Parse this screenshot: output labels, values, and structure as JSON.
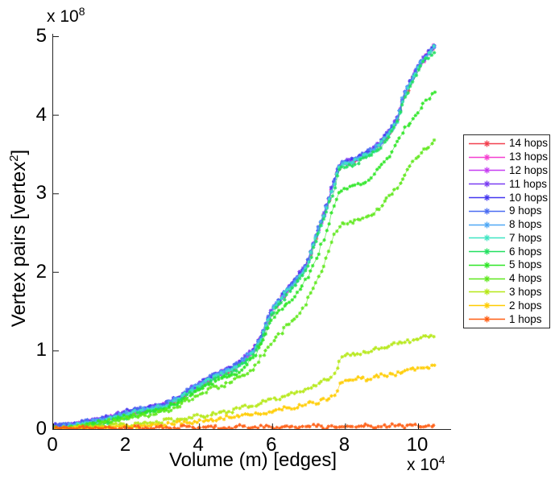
{
  "figure": {
    "background": "#ffffff",
    "xlabel": "Volume (m) [edges]",
    "ylabel": {
      "base": "Vertex pairs [vertex",
      "sup": "2",
      "close": "]"
    },
    "y_exp": {
      "base": "x 10",
      "sup": "8"
    },
    "x_exp": {
      "base": "x 10",
      "sup": "4"
    }
  },
  "chart_data": {
    "type": "line",
    "title": "",
    "xlabel": "Volume (m) [edges]",
    "ylabel": "Vertex pairs [vertex^2]",
    "x_unit": "1e4 edges",
    "y_unit": "1e8 vertex pairs",
    "xlim": [
      0,
      10.9
    ],
    "ylim": [
      0,
      5.03
    ],
    "x_ticks": [
      0,
      2,
      4,
      6,
      8,
      10
    ],
    "y_ticks": [
      0,
      1,
      2,
      3,
      4,
      5
    ],
    "grid": false,
    "marker": "asterisk",
    "legend_position": "right-outside",
    "legend_order": "14 hops (top) to 1 hops (bottom)",
    "saturation_curve": [
      [
        0,
        0.01
      ],
      [
        0.5,
        0.03
      ],
      [
        1,
        0.07
      ],
      [
        1.5,
        0.12
      ],
      [
        2,
        0.19
      ],
      [
        2.5,
        0.24
      ],
      [
        3,
        0.28
      ],
      [
        3.2,
        0.32
      ],
      [
        3.5,
        0.4
      ],
      [
        4,
        0.55
      ],
      [
        4.5,
        0.68
      ],
      [
        5,
        0.78
      ],
      [
        5.2,
        0.85
      ],
      [
        5.5,
        1.0
      ],
      [
        5.75,
        1.2
      ],
      [
        6,
        1.5
      ],
      [
        6.2,
        1.62
      ],
      [
        6.4,
        1.75
      ],
      [
        6.6,
        1.85
      ],
      [
        6.8,
        1.98
      ],
      [
        6.95,
        2.08
      ],
      [
        7.1,
        2.3
      ],
      [
        7.25,
        2.5
      ],
      [
        7.4,
        2.68
      ],
      [
        7.55,
        2.9
      ],
      [
        7.7,
        3.12
      ],
      [
        7.8,
        3.3
      ],
      [
        7.95,
        3.37
      ],
      [
        8.2,
        3.39
      ],
      [
        8.45,
        3.46
      ],
      [
        8.7,
        3.52
      ],
      [
        9.0,
        3.64
      ],
      [
        9.15,
        3.72
      ],
      [
        9.3,
        3.82
      ],
      [
        9.45,
        3.95
      ],
      [
        9.6,
        4.22
      ],
      [
        9.75,
        4.35
      ],
      [
        9.9,
        4.5
      ],
      [
        10.05,
        4.62
      ],
      [
        10.2,
        4.72
      ],
      [
        10.35,
        4.8
      ],
      [
        10.5,
        4.88
      ]
    ],
    "series": [
      {
        "label": "1 hops",
        "color": "#ff5c11",
        "points": [
          [
            0,
            0.008
          ],
          [
            2,
            0.014
          ],
          [
            4,
            0.02
          ],
          [
            6,
            0.027
          ],
          [
            8,
            0.035
          ],
          [
            9,
            0.04
          ],
          [
            10.5,
            0.046
          ]
        ]
      },
      {
        "label": "2 hops",
        "color": "#ffcc00",
        "points": [
          [
            0,
            0.005
          ],
          [
            1,
            0.015
          ],
          [
            2,
            0.03
          ],
          [
            3,
            0.06
          ],
          [
            4,
            0.1
          ],
          [
            5,
            0.16
          ],
          [
            5.5,
            0.19
          ],
          [
            6,
            0.23
          ],
          [
            6.4,
            0.27
          ],
          [
            6.8,
            0.3
          ],
          [
            7.1,
            0.33
          ],
          [
            7.4,
            0.37
          ],
          [
            7.6,
            0.4
          ],
          [
            7.7,
            0.43
          ],
          [
            7.85,
            0.58
          ],
          [
            8.0,
            0.62
          ],
          [
            8.3,
            0.63
          ],
          [
            8.7,
            0.65
          ],
          [
            9.0,
            0.68
          ],
          [
            9.3,
            0.7
          ],
          [
            9.6,
            0.73
          ],
          [
            9.9,
            0.76
          ],
          [
            10.2,
            0.78
          ],
          [
            10.5,
            0.8
          ]
        ]
      },
      {
        "label": "3 hops",
        "color": "#b5e817",
        "points": [
          [
            0,
            0.005
          ],
          [
            1,
            0.02
          ],
          [
            2,
            0.05
          ],
          [
            3,
            0.1
          ],
          [
            4,
            0.16
          ],
          [
            4.5,
            0.2
          ],
          [
            5,
            0.25
          ],
          [
            5.5,
            0.31
          ],
          [
            6,
            0.37
          ],
          [
            6.4,
            0.43
          ],
          [
            6.8,
            0.49
          ],
          [
            7.1,
            0.54
          ],
          [
            7.4,
            0.6
          ],
          [
            7.6,
            0.66
          ],
          [
            7.7,
            0.72
          ],
          [
            7.85,
            0.88
          ],
          [
            8.0,
            0.93
          ],
          [
            8.3,
            0.95
          ],
          [
            8.7,
            0.99
          ],
          [
            9.0,
            1.03
          ],
          [
            9.3,
            1.07
          ],
          [
            9.6,
            1.11
          ],
          [
            9.9,
            1.14
          ],
          [
            10.2,
            1.17
          ],
          [
            10.5,
            1.2
          ]
        ]
      },
      {
        "label": "4 hops",
        "color": "#5fe81c",
        "points": [
          [
            0,
            0.01
          ],
          [
            0.5,
            0.02
          ],
          [
            1,
            0.05
          ],
          [
            1.5,
            0.09
          ],
          [
            2,
            0.14
          ],
          [
            2.5,
            0.18
          ],
          [
            3,
            0.22
          ],
          [
            3.5,
            0.31
          ],
          [
            4,
            0.44
          ],
          [
            4.5,
            0.54
          ],
          [
            5,
            0.62
          ],
          [
            5.5,
            0.78
          ],
          [
            6,
            1.1
          ],
          [
            6.4,
            1.3
          ],
          [
            6.8,
            1.5
          ],
          [
            7.1,
            1.75
          ],
          [
            7.4,
            2.05
          ],
          [
            7.55,
            2.25
          ],
          [
            7.7,
            2.45
          ],
          [
            7.85,
            2.58
          ],
          [
            8.0,
            2.63
          ],
          [
            8.2,
            2.65
          ],
          [
            8.45,
            2.67
          ],
          [
            8.7,
            2.73
          ],
          [
            9.0,
            2.85
          ],
          [
            9.3,
            3.0
          ],
          [
            9.6,
            3.2
          ],
          [
            9.9,
            3.42
          ],
          [
            10.2,
            3.58
          ],
          [
            10.5,
            3.68
          ]
        ]
      },
      {
        "label": "5 hops",
        "color": "#2ee626",
        "points": [
          [
            0,
            0.01
          ],
          [
            0.5,
            0.025
          ],
          [
            1,
            0.06
          ],
          [
            1.5,
            0.1
          ],
          [
            2,
            0.16
          ],
          [
            2.5,
            0.21
          ],
          [
            3,
            0.25
          ],
          [
            3.5,
            0.36
          ],
          [
            4,
            0.5
          ],
          [
            4.5,
            0.62
          ],
          [
            5,
            0.7
          ],
          [
            5.5,
            0.9
          ],
          [
            6,
            1.4
          ],
          [
            6.4,
            1.58
          ],
          [
            6.8,
            1.78
          ],
          [
            7.1,
            2.05
          ],
          [
            7.4,
            2.4
          ],
          [
            7.55,
            2.6
          ],
          [
            7.7,
            2.85
          ],
          [
            7.85,
            3.0
          ],
          [
            8.0,
            3.06
          ],
          [
            8.2,
            3.09
          ],
          [
            8.45,
            3.13
          ],
          [
            8.7,
            3.2
          ],
          [
            9.0,
            3.35
          ],
          [
            9.3,
            3.55
          ],
          [
            9.6,
            3.78
          ],
          [
            9.9,
            3.98
          ],
          [
            10.2,
            4.17
          ],
          [
            10.5,
            4.31
          ]
        ]
      },
      {
        "label": "6 hops",
        "color": "#22e060",
        "points": "saturation",
        "offset": -0.035
      },
      {
        "label": "7 hops",
        "color": "#3fe6c3",
        "points": "saturation",
        "offset": 0.0
      },
      {
        "label": "8 hops",
        "color": "#4fa8f5",
        "points": "saturation",
        "offset": 0.012
      },
      {
        "label": "9 hops",
        "color": "#4a6cf2",
        "points": "saturation",
        "offset": 0.024
      },
      {
        "label": "10 hops",
        "color": "#4437f0",
        "points": "saturation",
        "offset": 0.028
      },
      {
        "label": "11 hops",
        "color": "#7a3cf2",
        "points": "saturation",
        "offset": 0.024
      },
      {
        "label": "12 hops",
        "color": "#c63df2",
        "points": "saturation",
        "offset": 0.016
      },
      {
        "label": "13 hops",
        "color": "#f53fd0",
        "points": "saturation",
        "offset": 0.01
      },
      {
        "label": "14 hops",
        "color": "#f2404f",
        "points": "saturation",
        "offset": 0.005
      }
    ]
  }
}
